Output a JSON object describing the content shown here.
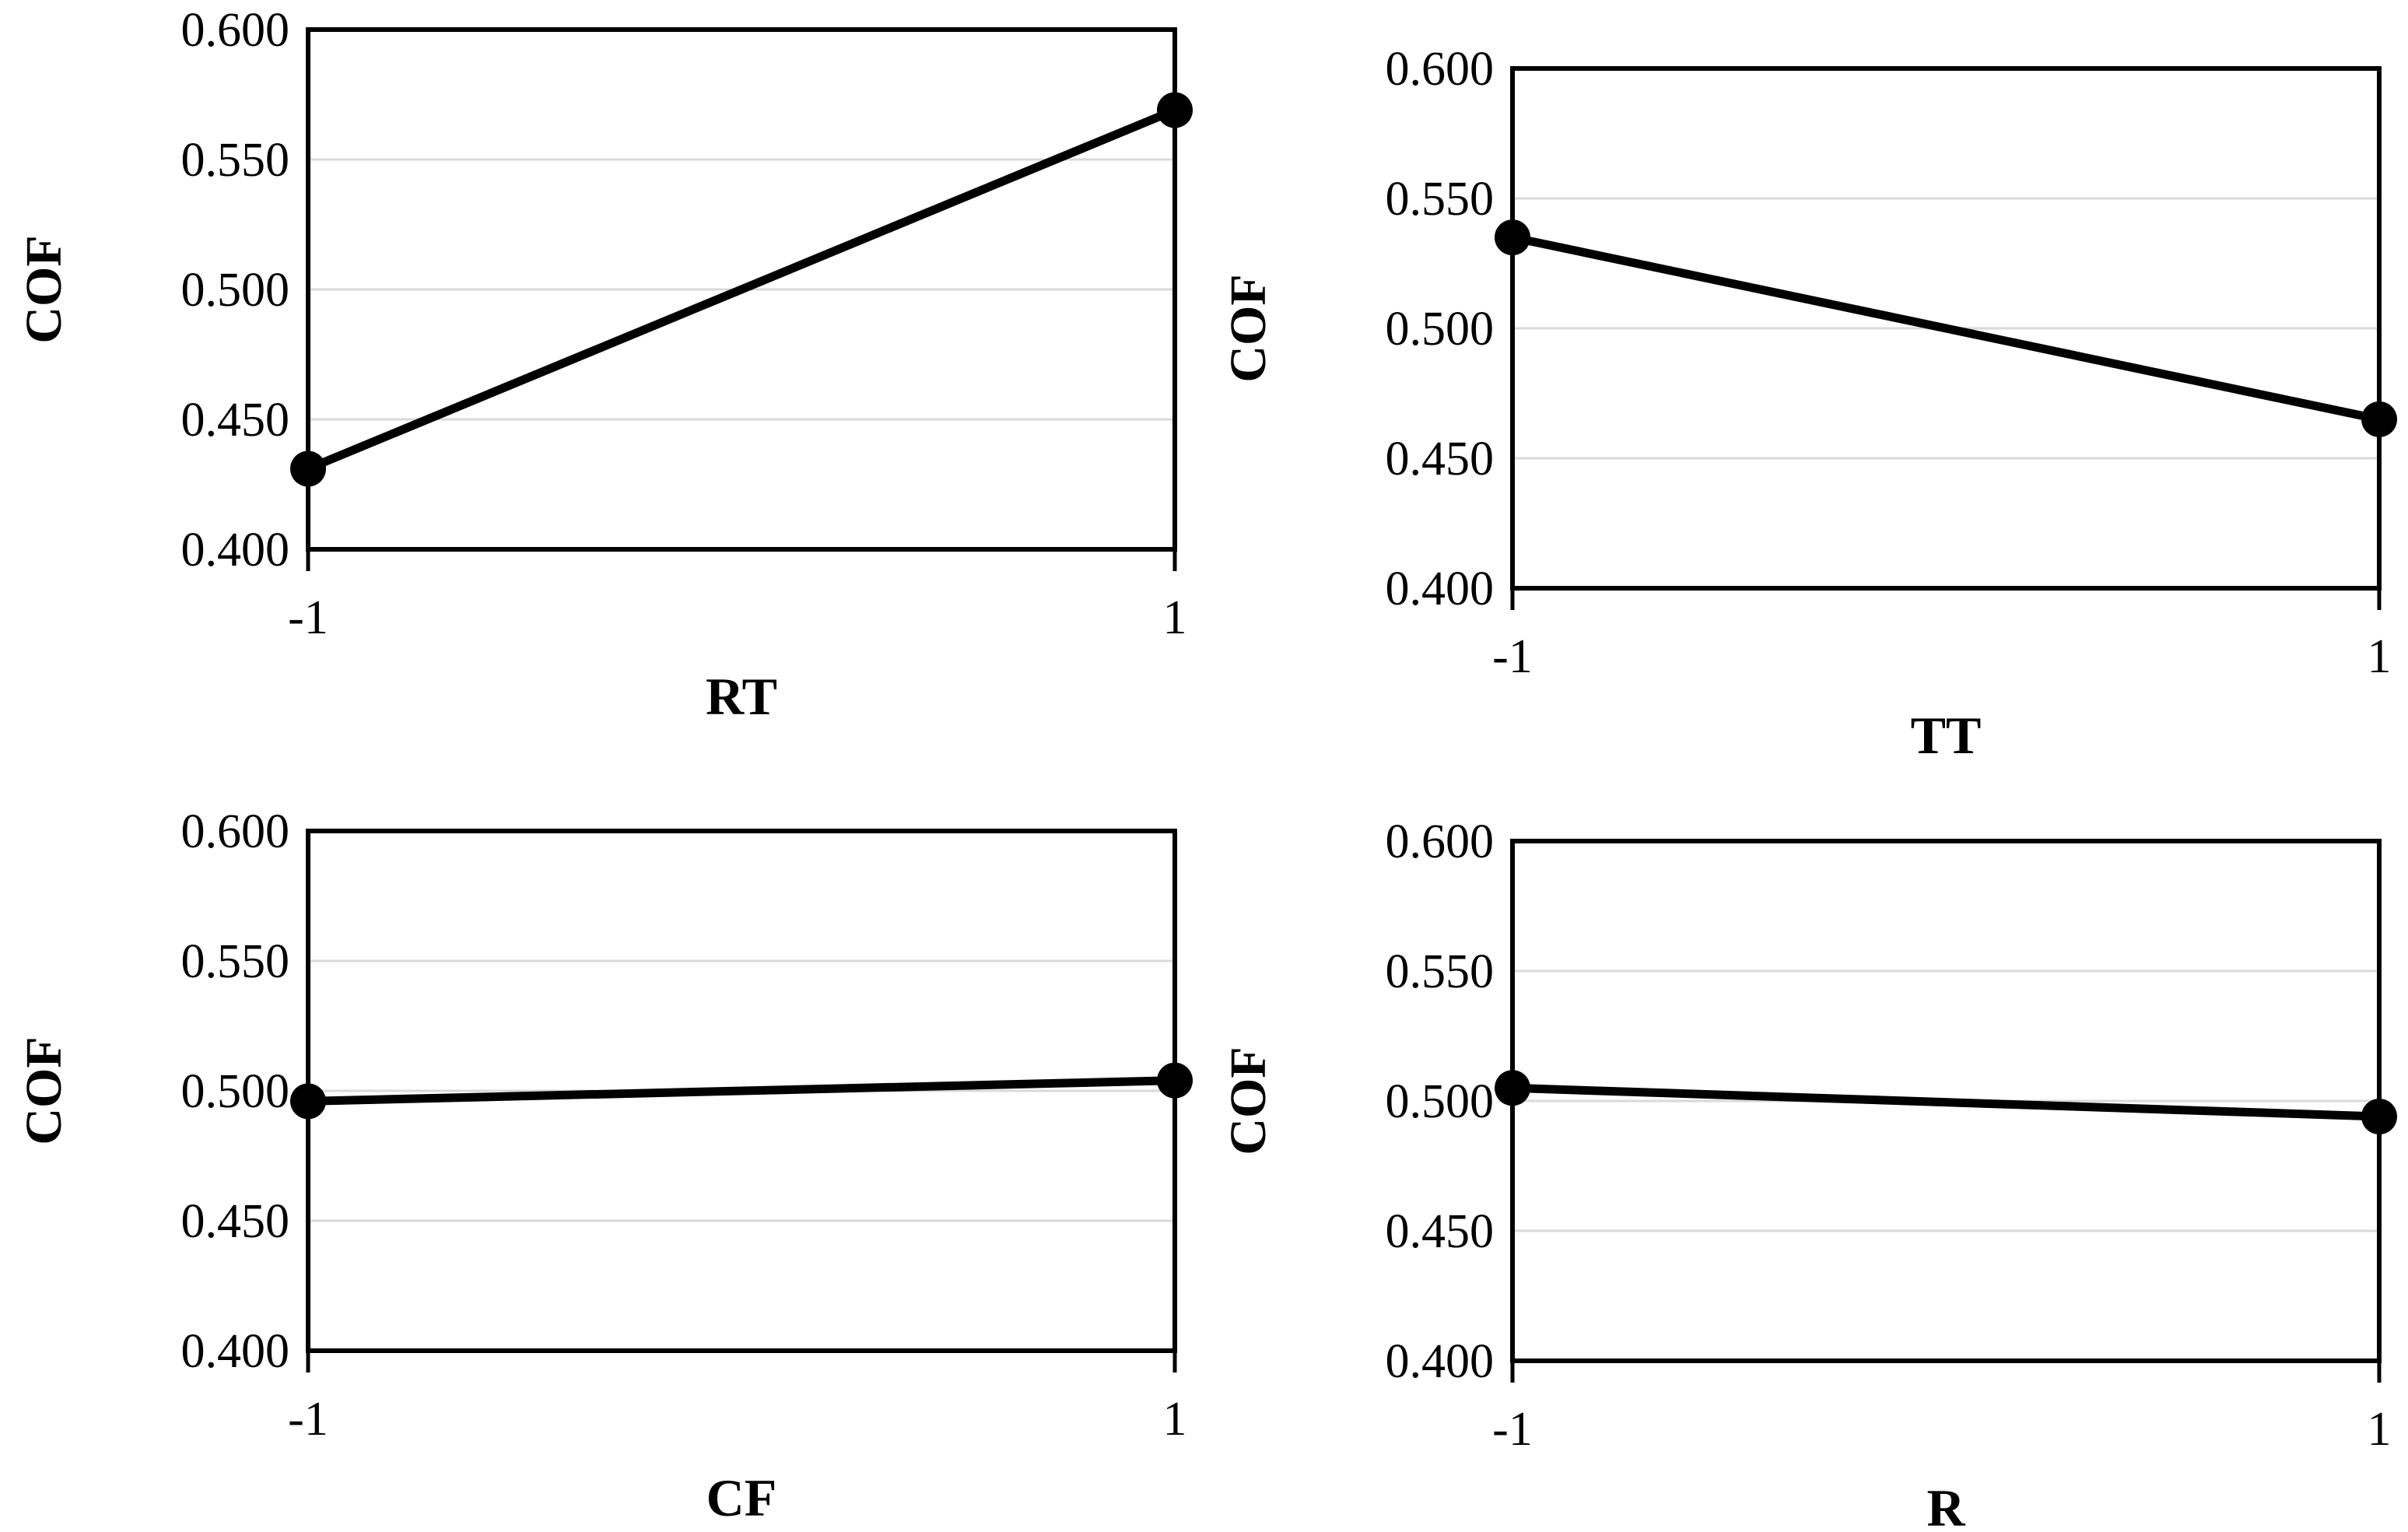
{
  "figure": {
    "background_color": "#ffffff",
    "text_color": "#000000",
    "line_color": "#000000",
    "grid_color": "#d9d9d9",
    "marker": "filled-circle"
  },
  "chart_data": [
    {
      "type": "line",
      "panel": "top-left",
      "title": "",
      "xlabel": "RT",
      "ylabel": "COF",
      "x": [
        -1,
        1
      ],
      "xtick_labels": [
        "-1",
        "1"
      ],
      "values": [
        0.431,
        0.569
      ],
      "ylim": [
        0.4,
        0.6
      ],
      "yticks": [
        0.4,
        0.45,
        0.5,
        0.55,
        0.6
      ],
      "ytick_labels": [
        "0.400",
        "0.450",
        "0.500",
        "0.550",
        "0.600"
      ],
      "grid": "horizontal",
      "legend": "none"
    },
    {
      "type": "line",
      "panel": "top-right",
      "title": "",
      "xlabel": "TT",
      "ylabel": "COF",
      "x": [
        -1,
        1
      ],
      "xtick_labels": [
        "-1",
        "1"
      ],
      "values": [
        0.535,
        0.465
      ],
      "ylim": [
        0.4,
        0.6
      ],
      "yticks": [
        0.4,
        0.45,
        0.5,
        0.55,
        0.6
      ],
      "ytick_labels": [
        "0.400",
        "0.450",
        "0.500",
        "0.550",
        "0.600"
      ],
      "grid": "horizontal",
      "legend": "none"
    },
    {
      "type": "line",
      "panel": "bottom-left",
      "title": "",
      "xlabel": "CF",
      "ylabel": "COF",
      "x": [
        -1,
        1
      ],
      "xtick_labels": [
        "-1",
        "1"
      ],
      "values": [
        0.496,
        0.504
      ],
      "ylim": [
        0.4,
        0.6
      ],
      "yticks": [
        0.4,
        0.45,
        0.5,
        0.55,
        0.6
      ],
      "ytick_labels": [
        "0.400",
        "0.450",
        "0.500",
        "0.550",
        "0.600"
      ],
      "grid": "horizontal",
      "legend": "none"
    },
    {
      "type": "line",
      "panel": "bottom-right",
      "title": "",
      "xlabel": "R",
      "ylabel": "COF",
      "x": [
        -1,
        1
      ],
      "xtick_labels": [
        "-1",
        "1"
      ],
      "values": [
        0.505,
        0.494
      ],
      "ylim": [
        0.4,
        0.6
      ],
      "yticks": [
        0.4,
        0.45,
        0.5,
        0.55,
        0.6
      ],
      "ytick_labels": [
        "0.400",
        "0.450",
        "0.500",
        "0.550",
        "0.600"
      ],
      "grid": "horizontal",
      "legend": "none"
    }
  ]
}
